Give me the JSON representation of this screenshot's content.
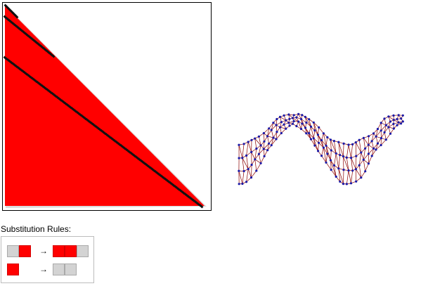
{
  "colors": {
    "fill": "#ff0000",
    "blank": "#d3d3d3",
    "edge": "#8b0000",
    "node": "#1a1aa8",
    "diagonal_marks": "#111111",
    "panel_border": "#000000"
  },
  "rules": {
    "title": "Substitution Rules:",
    "arrow_glyph": "→",
    "items": [
      {
        "lhs": [
          "gray",
          "red"
        ],
        "rhs": [
          "red",
          "red",
          "gray"
        ]
      },
      {
        "lhs": [
          "red"
        ],
        "rhs": [
          "gray",
          "gray"
        ]
      }
    ]
  },
  "icons": [
    "right-arrow-icon"
  ]
}
